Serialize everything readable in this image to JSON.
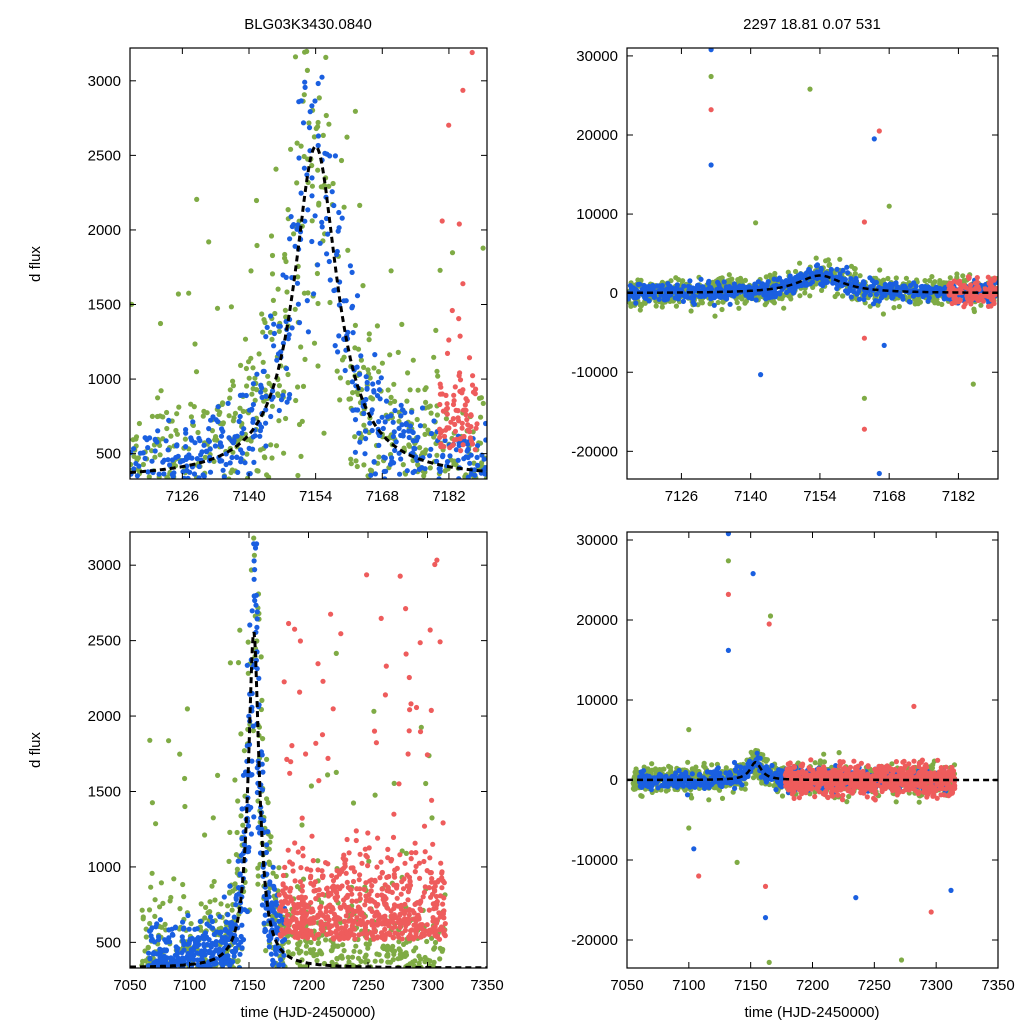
{
  "figure": {
    "title_left": "BLG03K3430.0840",
    "title_right": "2297  18.81  0.07  531",
    "ylabel": "d flux",
    "xlabel": "time (HJD-2450000)"
  },
  "colors": {
    "green": "#7fab45",
    "blue": "#1a5fe0",
    "red": "#ee5c5c",
    "model": "#000000"
  },
  "chart_data": [
    {
      "id": "top-left",
      "type": "scatter",
      "xlim": [
        7115,
        7190
      ],
      "ylim": [
        330,
        3220
      ],
      "xticks": [
        7126,
        7140,
        7154,
        7168,
        7182
      ],
      "yticks": [
        500,
        1000,
        1500,
        2000,
        2500,
        3000
      ],
      "model": {
        "t0": 7154,
        "peak": 2560,
        "base": 330,
        "width": 5.5
      },
      "series": [
        {
          "name": "green",
          "approx_points": 600,
          "description": "survey data, high scatter"
        },
        {
          "name": "blue",
          "approx_points": 500,
          "description": "survey data following model"
        },
        {
          "name": "red",
          "approx_points": 90,
          "description": "late data near 7180-7187"
        }
      ]
    },
    {
      "id": "top-right",
      "type": "scatter",
      "xlim": [
        7115,
        7190
      ],
      "ylim": [
        -23500,
        31000
      ],
      "xticks": [
        7126,
        7140,
        7154,
        7168,
        7182
      ],
      "yticks": [
        -20000,
        -10000,
        0,
        10000,
        20000,
        30000
      ],
      "outliers": [
        {
          "x": 7132,
          "y": 30800
        },
        {
          "x": 7132,
          "y": 27400
        },
        {
          "x": 7132,
          "y": 23200
        },
        {
          "x": 7132,
          "y": 16200
        },
        {
          "x": 7152,
          "y": 25800
        },
        {
          "x": 7166,
          "y": 20500
        },
        {
          "x": 7165,
          "y": 19500
        },
        {
          "x": 7141,
          "y": 8900
        },
        {
          "x": 7163,
          "y": 9000
        },
        {
          "x": 7142,
          "y": -10300
        },
        {
          "x": 7163,
          "y": -13300
        },
        {
          "x": 7163,
          "y": -17200
        },
        {
          "x": 7166,
          "y": -22800
        },
        {
          "x": 7185,
          "y": -11500
        },
        {
          "x": 7163,
          "y": -5700
        },
        {
          "x": 7167,
          "y": -6600
        },
        {
          "x": 7168,
          "y": 11000
        }
      ]
    },
    {
      "id": "bottom-left",
      "type": "scatter",
      "xlim": [
        7050,
        7350
      ],
      "ylim": [
        330,
        3220
      ],
      "xticks": [
        7050,
        7100,
        7150,
        7200,
        7250,
        7300,
        7350
      ],
      "yticks": [
        500,
        1000,
        1500,
        2000,
        2500,
        3000
      ],
      "data_range": [
        7060,
        7315
      ]
    },
    {
      "id": "bottom-right",
      "type": "scatter",
      "xlim": [
        7050,
        7350
      ],
      "ylim": [
        -23500,
        31000
      ],
      "xticks": [
        7050,
        7100,
        7150,
        7200,
        7250,
        7300,
        7350
      ],
      "yticks": [
        -20000,
        -10000,
        0,
        10000,
        20000,
        30000
      ],
      "outliers": [
        {
          "x": 7132,
          "y": 30800
        },
        {
          "x": 7132,
          "y": 27400
        },
        {
          "x": 7132,
          "y": 23200
        },
        {
          "x": 7152,
          "y": 25800
        },
        {
          "x": 7166,
          "y": 20500
        },
        {
          "x": 7165,
          "y": 19500
        },
        {
          "x": 7132,
          "y": 16200
        },
        {
          "x": 7139,
          "y": -10300
        },
        {
          "x": 7162,
          "y": -13300
        },
        {
          "x": 7162,
          "y": -17200
        },
        {
          "x": 7165,
          "y": -22800
        },
        {
          "x": 7108,
          "y": -12000
        },
        {
          "x": 7235,
          "y": -14700
        },
        {
          "x": 7272,
          "y": -22500
        },
        {
          "x": 7296,
          "y": -16500
        },
        {
          "x": 7312,
          "y": -13800
        },
        {
          "x": 7100,
          "y": 6300
        },
        {
          "x": 7282,
          "y": 9200
        },
        {
          "x": 7104,
          "y": -8600
        },
        {
          "x": 7100,
          "y": -6000
        }
      ]
    }
  ]
}
